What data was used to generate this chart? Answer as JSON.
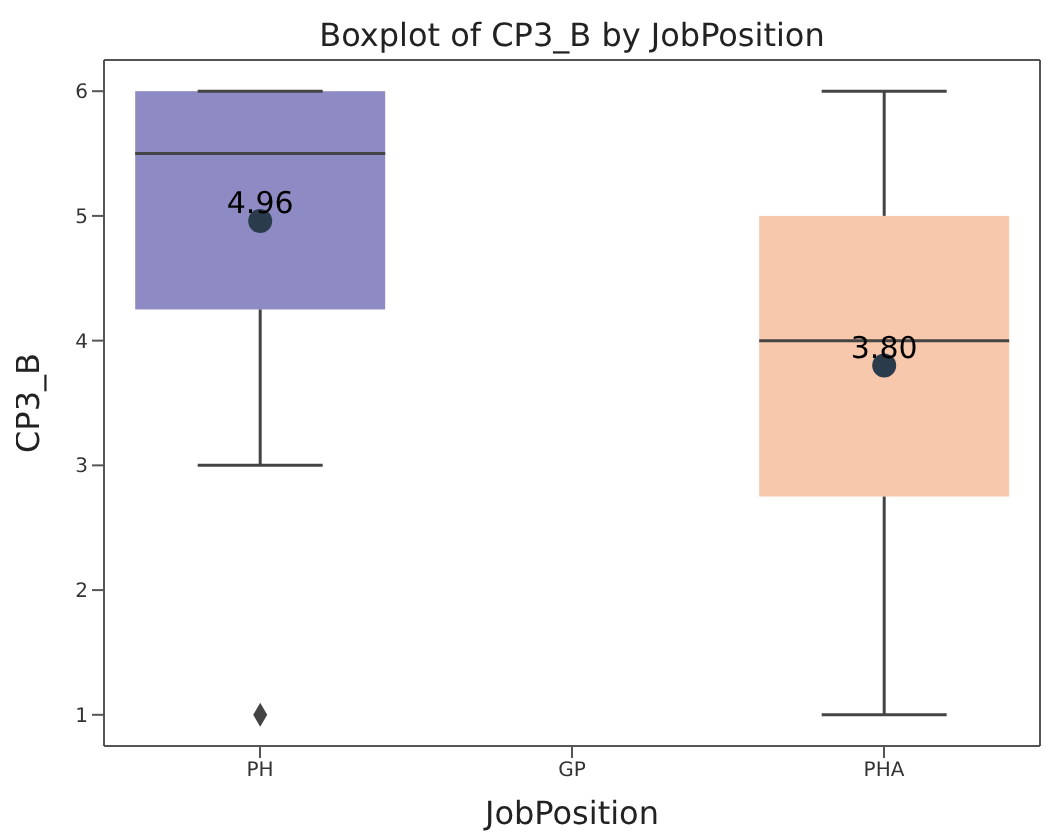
{
  "chart_data": {
    "type": "box",
    "title": "Boxplot of CP3_B by JobPosition",
    "xlabel": "JobPosition",
    "ylabel": "CP3_B",
    "categories": [
      "PH",
      "GP",
      "PHA"
    ],
    "colors": [
      "#8e8ac4",
      null,
      "#f8c8ac"
    ],
    "boxes": [
      {
        "low": 3,
        "q1": 4.25,
        "median": 5.5,
        "q3": 6,
        "high": 6,
        "mean": 4.96,
        "outliers": [
          1
        ]
      },
      null,
      {
        "low": 1,
        "q1": 2.75,
        "median": 4,
        "q3": 5,
        "high": 6,
        "mean": 3.8
      }
    ],
    "annotations": [
      "4.96",
      "3.80"
    ],
    "ylim": [
      0.75,
      6.25
    ],
    "yticks": [
      1,
      2,
      3,
      4,
      5,
      6
    ],
    "grid": false
  }
}
